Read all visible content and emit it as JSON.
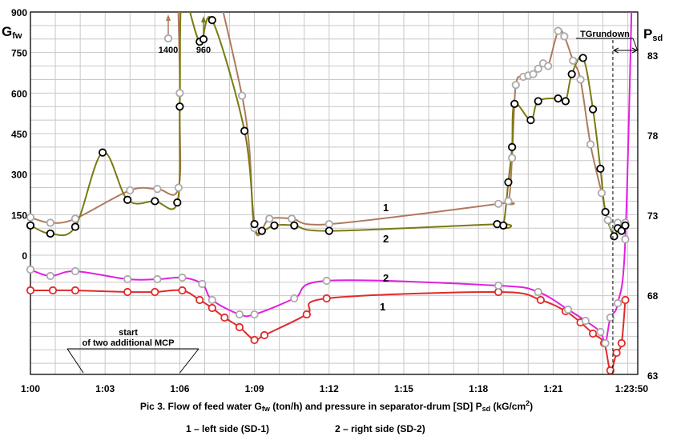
{
  "chart_data": {
    "type": "line",
    "title": "Pic 3. Flow of feed water Gfw (ton/h) and pressure in separator-drum [SD] Psd (kG/cm2)",
    "caption_parts": {
      "p1": "Pic 3. Flow of feed water G",
      "p1sub": "fw",
      "p2": " (ton/h) and pressure in separator-drum [SD] P",
      "p2sub": "sd",
      "p3": " (kG/cm",
      "p3sup": "2",
      "p4": ")"
    },
    "legend": {
      "left": "1 – left side (SD-1)",
      "right": "2 – right side (SD-2)"
    },
    "left_axis": {
      "title": "G",
      "title_sub": "fw",
      "ticks": [
        0,
        150,
        300,
        450,
        600,
        750,
        900
      ],
      "range": [
        0,
        900
      ]
    },
    "right_axis": {
      "title": "P",
      "title_sub": "sd",
      "ticks": [
        63,
        68,
        73,
        78,
        83
      ]
    },
    "x_axis": {
      "tick_labels": [
        "1:00",
        "1:03",
        "1:06",
        "1:09",
        "1:12",
        "1:15",
        "1:18",
        "1:21",
        "1:23:50"
      ],
      "tick_minutes": [
        0,
        3,
        6,
        9,
        12,
        15,
        18,
        21,
        23.833
      ]
    },
    "grid": true,
    "annotations": {
      "start_mcp_line1": "start",
      "start_mcp_line2": "of two additional MCP",
      "tg_rundown": "TGrundown",
      "peak1": "1400",
      "peak2": "960",
      "flow_label_1": "1",
      "flow_label_2": "2",
      "pres_label_1": "1",
      "pres_label_2": "2"
    },
    "colors": {
      "flow_1": "#b07a5e",
      "flow_2": "#7a7a10",
      "pressure_1": "#e02a2a",
      "pressure_2": "#e020e0",
      "marker_black": "#000000",
      "marker_grey": "#aaaaaa",
      "grid": "#c8c8c8"
    },
    "series": [
      {
        "name": "1",
        "quantity": "Gfw",
        "side": "left",
        "color": "#b07a5e",
        "marker": "grey",
        "x": [
          0,
          0.8,
          1.8,
          4.0,
          5.1,
          5.95,
          6.0,
          6.1,
          8.5,
          9.0,
          9.6,
          10.5,
          12.0,
          18.8,
          19.2,
          19.35,
          19.5,
          19.8,
          20.0,
          20.2,
          20.4,
          20.6,
          20.8,
          21.2,
          21.45,
          21.8,
          22.1,
          22.5,
          22.95,
          23.2,
          23.4,
          23.6,
          23.8,
          23.9
        ],
        "y": [
          140,
          120,
          135,
          240,
          245,
          250,
          600,
          1400,
          590,
          100,
          135,
          135,
          115,
          190,
          200,
          360,
          630,
          660,
          665,
          670,
          690,
          710,
          700,
          830,
          810,
          720,
          650,
          410,
          230,
          130,
          110,
          120,
          100,
          120
        ]
      },
      {
        "name": "2",
        "quantity": "Gfw",
        "side": "left",
        "color": "#7a7a10",
        "marker": "black",
        "x": [
          0,
          0.8,
          1.8,
          2.9,
          3.9,
          5.0,
          5.9,
          6.0,
          6.1,
          6.8,
          7.3,
          8.6,
          9.0,
          9.3,
          9.8,
          10.6,
          12.0,
          18.75,
          19.0,
          19.2,
          19.35,
          19.45,
          20.1,
          20.4,
          21.2,
          21.5,
          21.75,
          22.2,
          22.6,
          22.9,
          23.1,
          23.45,
          23.6,
          23.75,
          23.9
        ],
        "y": [
          110,
          80,
          105,
          380,
          205,
          200,
          195,
          550,
          960,
          790,
          870,
          460,
          115,
          90,
          110,
          110,
          90,
          115,
          110,
          270,
          400,
          560,
          500,
          570,
          580,
          570,
          670,
          730,
          540,
          320,
          160,
          70,
          100,
          90,
          110
        ]
      },
      {
        "name": "1",
        "quantity": "Psd",
        "side": "right",
        "color": "#e02a2a",
        "marker": "red",
        "x": [
          0,
          0.9,
          1.8,
          3.9,
          5.0,
          6.1,
          6.8,
          7.3,
          7.8,
          8.4,
          9.0,
          9.4,
          11.1,
          11.9,
          18.8,
          20.5,
          21.5,
          22.1,
          22.6,
          23.05,
          23.3,
          23.55,
          23.75,
          23.9
        ],
        "y": [
          68.3,
          68.3,
          68.3,
          68.2,
          68.2,
          68.3,
          67.7,
          67.2,
          66.6,
          66.0,
          65.2,
          65.5,
          66.8,
          67.8,
          68.2,
          67.7,
          67.0,
          66.3,
          65.6,
          65.0,
          63.3,
          64.4,
          65.0,
          67.7
        ]
      },
      {
        "name": "2",
        "quantity": "Psd",
        "side": "right",
        "color": "#e020e0",
        "marker": "grey",
        "x": [
          0,
          0.8,
          1.8,
          3.9,
          5.1,
          6.1,
          6.9,
          7.3,
          8.4,
          9.0,
          10.6,
          11.9,
          18.8,
          20.4,
          21.6,
          22.3,
          22.9,
          23.1,
          23.3,
          23.6,
          23.9,
          24.2
        ],
        "y": [
          69.6,
          69.2,
          69.5,
          69.0,
          69.0,
          69.1,
          68.7,
          67.7,
          66.8,
          66.8,
          67.8,
          68.9,
          68.6,
          68.2,
          67.1,
          66.4,
          65.7,
          65.0,
          66.6,
          67.5,
          71.5,
          89.0
        ]
      }
    ],
    "event_lines_minutes": {
      "mcp_start": 6.0,
      "tg_rundown": 23.4
    }
  }
}
